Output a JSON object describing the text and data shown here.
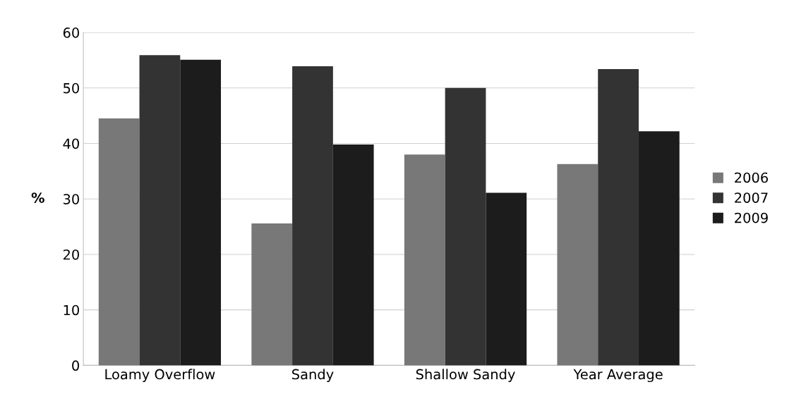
{
  "chart_data": {
    "type": "bar",
    "ylabel": "%",
    "categories": [
      "Loamy Overflow",
      "Sandy",
      "Shallow Sandy",
      "Year Average"
    ],
    "series": [
      {
        "name": "2006",
        "color": "#787878",
        "values": [
          44.5,
          25.6,
          38.0,
          36.3
        ]
      },
      {
        "name": "2007",
        "color": "#333333",
        "values": [
          55.9,
          53.9,
          50.0,
          53.4
        ]
      },
      {
        "name": "2009",
        "color": "#1c1c1c",
        "values": [
          55.1,
          39.8,
          31.1,
          42.2
        ]
      }
    ],
    "ylim": [
      0,
      60
    ],
    "yticks": [
      0,
      10,
      20,
      30,
      40,
      50,
      60
    ],
    "grid": "y",
    "legend": "right"
  }
}
